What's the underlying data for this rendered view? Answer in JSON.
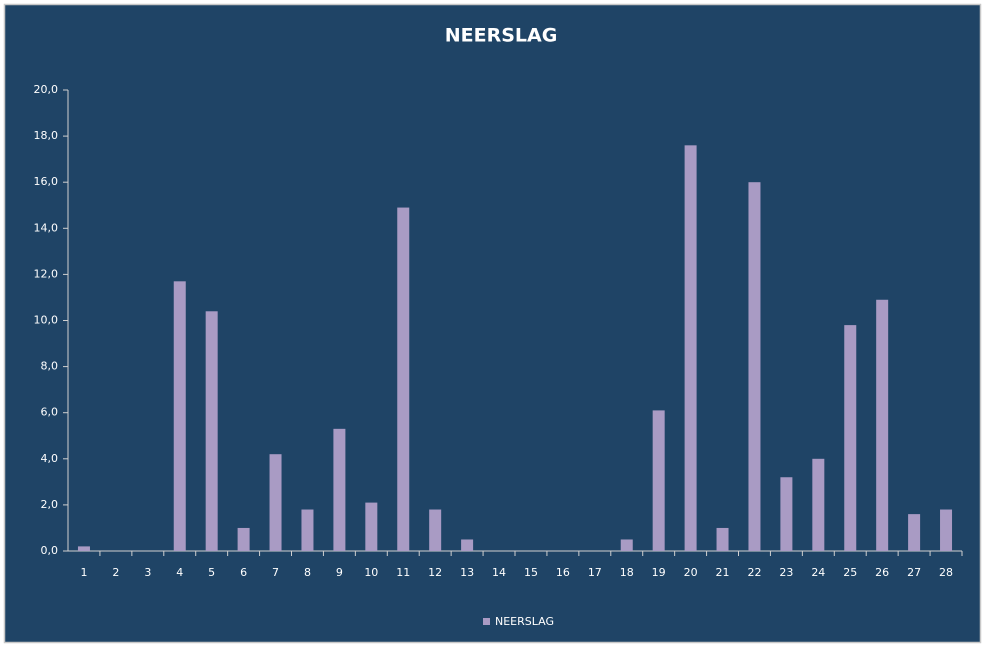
{
  "chart_data": {
    "type": "bar",
    "title": "NEERSLAG",
    "categories": [
      "1",
      "2",
      "3",
      "4",
      "5",
      "6",
      "7",
      "8",
      "9",
      "10",
      "11",
      "12",
      "13",
      "14",
      "15",
      "16",
      "17",
      "18",
      "19",
      "20",
      "21",
      "22",
      "23",
      "24",
      "25",
      "26",
      "27",
      "28"
    ],
    "series": [
      {
        "name": "NEERSLAG",
        "color": "#a99bc4",
        "values": [
          0.2,
          0,
          0,
          11.7,
          10.4,
          1.0,
          4.2,
          1.8,
          5.3,
          2.1,
          14.9,
          1.8,
          0.5,
          0,
          0,
          0,
          0,
          0.5,
          6.1,
          17.6,
          1.0,
          16.0,
          3.2,
          4.0,
          9.8,
          10.9,
          1.6,
          1.8
        ]
      }
    ],
    "ylim": [
      0,
      20
    ],
    "yticks": [
      {
        "value": 0,
        "label": "0,0"
      },
      {
        "value": 2,
        "label": "2,0"
      },
      {
        "value": 4,
        "label": "4,0"
      },
      {
        "value": 6,
        "label": "6,0"
      },
      {
        "value": 8,
        "label": "8,0"
      },
      {
        "value": 10,
        "label": "10,0"
      },
      {
        "value": 12,
        "label": "12,0"
      },
      {
        "value": 14,
        "label": "14,0"
      },
      {
        "value": 16,
        "label": "16,0"
      },
      {
        "value": 18,
        "label": "18,0"
      },
      {
        "value": 20,
        "label": "20,0"
      }
    ],
    "grid": false,
    "legend": "bottom"
  }
}
